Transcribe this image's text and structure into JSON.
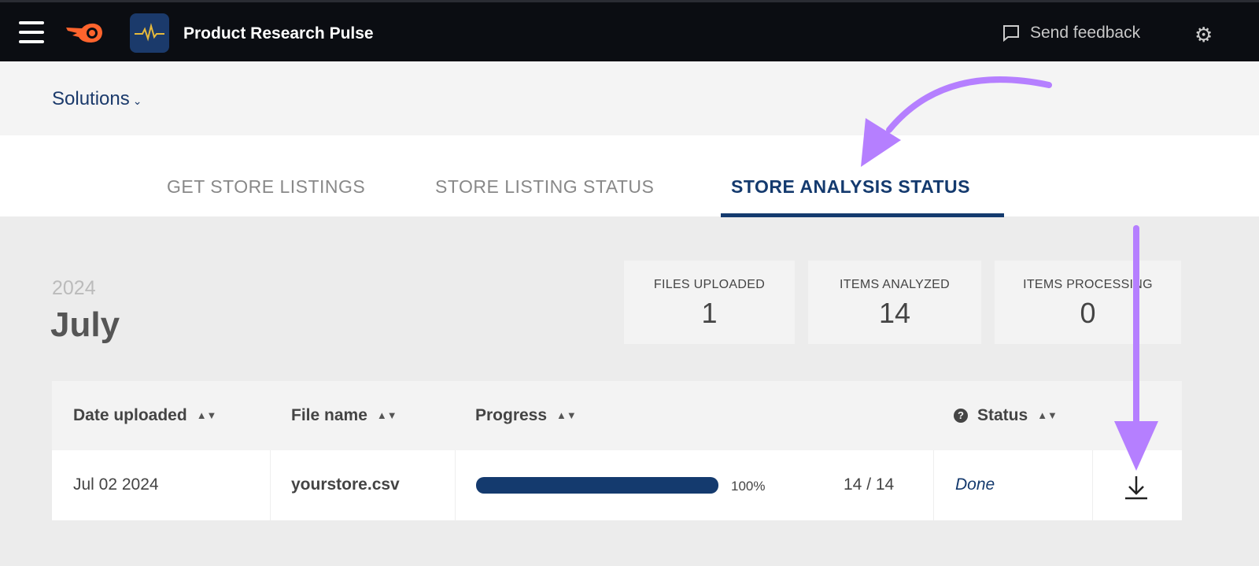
{
  "header": {
    "app_title": "Product Research Pulse",
    "feedback_label": "Send feedback"
  },
  "subnav": {
    "solutions_label": "Solutions"
  },
  "tabs": [
    {
      "label": "GET STORE LISTINGS"
    },
    {
      "label": "STORE LISTING STATUS"
    },
    {
      "label": "STORE ANALYSIS STATUS",
      "active": true
    }
  ],
  "period": {
    "year": "2024",
    "month": "July"
  },
  "stats": [
    {
      "label": "FILES UPLOADED",
      "value": "1"
    },
    {
      "label": "ITEMS ANALYZED",
      "value": "14"
    },
    {
      "label": "ITEMS PROCESSING",
      "value": "0"
    }
  ],
  "table": {
    "columns": [
      "Date uploaded",
      "File name",
      "Progress",
      "Status"
    ],
    "rows": [
      {
        "date": "Jul 02 2024",
        "file": "yourstore.csv",
        "progress": 100,
        "progress_label": "100%",
        "count": "14 / 14",
        "status": "Done"
      }
    ]
  },
  "colors": {
    "accent": "#143a6e",
    "annotation": "#b57fff",
    "brand": "#ff642d"
  }
}
